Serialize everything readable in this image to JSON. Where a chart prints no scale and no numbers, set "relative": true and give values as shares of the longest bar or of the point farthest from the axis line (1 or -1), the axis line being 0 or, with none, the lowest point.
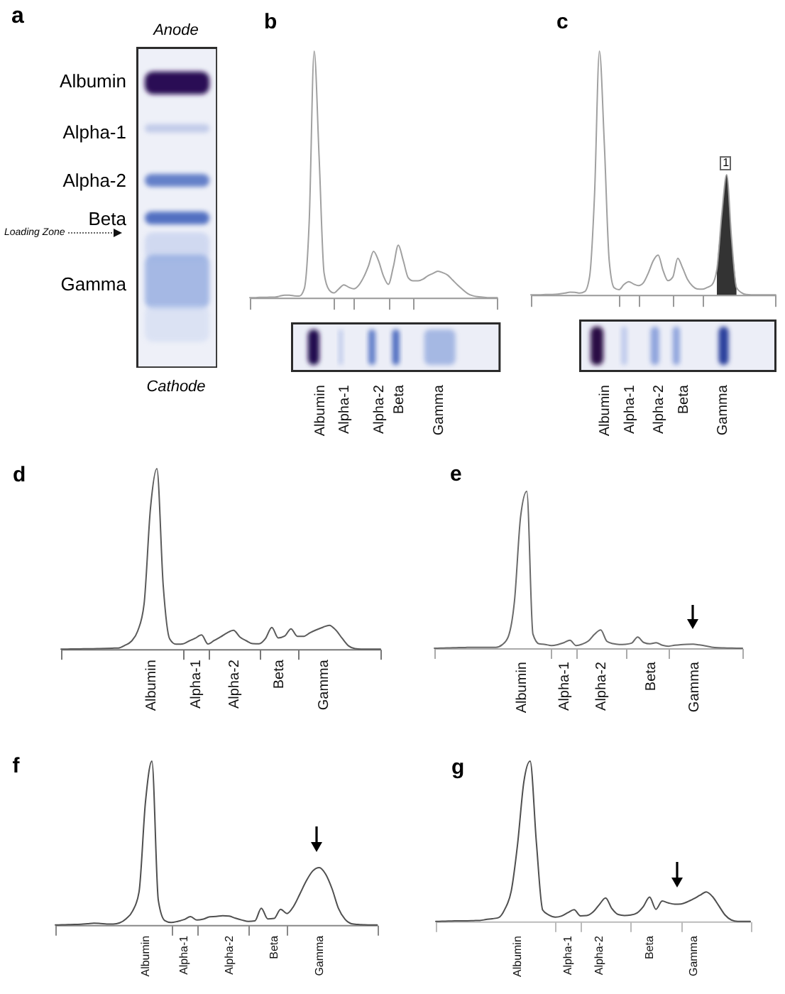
{
  "chart_data": [
    {
      "type": "other",
      "title": "a",
      "annotations": [
        "Anode",
        "Albumin",
        "Alpha-1",
        "Alpha-2",
        "Beta",
        "Loading Zone",
        "Gamma",
        "Cathode"
      ]
    },
    {
      "type": "line",
      "title": "b",
      "relative": true,
      "categories": [
        null,
        null,
        null,
        null,
        null,
        null,
        null,
        null,
        null,
        null,
        null,
        null,
        null,
        null,
        "Albumin",
        null,
        null,
        null,
        null,
        "Alpha-1",
        null,
        null,
        null,
        null,
        null,
        null,
        "Alpha-2",
        null,
        null,
        null,
        "Beta",
        null,
        null,
        null,
        null,
        null,
        null,
        null,
        "Gamma",
        null,
        null,
        null,
        null,
        null,
        null,
        null,
        null,
        null,
        null,
        null,
        null
      ],
      "series": [
        {
          "color": "#a0a0a0",
          "values": [
            0,
            0,
            0.001,
            0.001,
            0.002,
            0.002,
            0.006,
            0.01,
            0.01,
            0.007,
            0.006,
            0.036,
            0.31,
            1,
            0.57,
            0.1,
            0.032,
            0.019,
            0.036,
            0.052,
            0.042,
            0.036,
            0.05,
            0.083,
            0.13,
            0.188,
            0.15,
            0.088,
            0.054,
            0.125,
            0.213,
            0.151,
            0.081,
            0.068,
            0.068,
            0.075,
            0.089,
            0.098,
            0.107,
            0.101,
            0.091,
            0.071,
            0.051,
            0.033,
            0.017,
            0.008,
            0.004,
            0.002,
            0,
            0,
            0
          ]
        }
      ]
    },
    {
      "type": "line",
      "title": "c",
      "relative": true,
      "categories": [
        null,
        null,
        null,
        null,
        null,
        null,
        null,
        null,
        null,
        null,
        null,
        null,
        null,
        null,
        null,
        "Albumin",
        null,
        null,
        null,
        null,
        "Alpha-1",
        null,
        null,
        null,
        null,
        null,
        "Alpha-2",
        null,
        null,
        null,
        null,
        "Beta",
        null,
        null,
        null,
        null,
        null,
        null,
        null,
        "Gamma",
        null,
        null,
        null,
        null,
        null,
        null,
        null,
        null,
        null,
        null,
        null
      ],
      "series": [
        {
          "color": "#a0a0a0",
          "values": [
            0,
            0,
            0,
            0.001,
            0.001,
            0.002,
            0.004,
            0.007,
            0.011,
            0.01,
            0.007,
            0.013,
            0.076,
            0.41,
            1,
            0.62,
            0.14,
            0.029,
            0.021,
            0.042,
            0.054,
            0.044,
            0.038,
            0.05,
            0.09,
            0.14,
            0.163,
            0.1,
            0.058,
            0.073,
            0.15,
            0.11,
            0.063,
            0.036,
            0.024,
            0.023,
            0.03,
            0.041,
            0.105,
            0.33,
            0.493,
            0.23,
            0.03,
            0.009,
            0.001,
            0,
            0,
            0,
            0,
            0,
            0
          ]
        },
        {
          "type": "area",
          "color": "#333333",
          "values": [
            null,
            null,
            null,
            null,
            null,
            null,
            null,
            null,
            null,
            null,
            null,
            null,
            null,
            null,
            null,
            null,
            null,
            null,
            null,
            null,
            null,
            null,
            null,
            null,
            null,
            null,
            null,
            null,
            null,
            null,
            null,
            null,
            null,
            null,
            null,
            null,
            null,
            null,
            0.105,
            0.33,
            0.493,
            0.23,
            0.03,
            null,
            null,
            null,
            null,
            null,
            null,
            null,
            null
          ]
        }
      ],
      "annotations": [
        "1"
      ]
    },
    {
      "type": "line",
      "title": "d",
      "relative": true,
      "categories": [
        null,
        null,
        null,
        null,
        null,
        null,
        null,
        null,
        null,
        null,
        null,
        null,
        null,
        null,
        "Albumin",
        null,
        null,
        null,
        null,
        null,
        null,
        "Alpha-1",
        null,
        null,
        null,
        null,
        null,
        "Alpha-2",
        null,
        null,
        null,
        null,
        null,
        null,
        "Beta",
        null,
        null,
        null,
        null,
        null,
        null,
        "Gamma",
        null,
        null,
        null,
        null,
        null,
        null,
        null,
        null,
        null
      ],
      "series": [
        {
          "color": "#5a5a5a",
          "values": [
            0,
            0,
            0.001,
            0.001,
            0.002,
            0.002,
            0.003,
            0.004,
            0.005,
            0.006,
            0.021,
            0.043,
            0.1,
            0.25,
            0.78,
            1,
            0.35,
            0.057,
            0.027,
            0.028,
            0.044,
            0.06,
            0.078,
            0.028,
            0.048,
            0.068,
            0.09,
            0.104,
            0.067,
            0.046,
            0.03,
            0.029,
            0.058,
            0.12,
            0.062,
            0.072,
            0.112,
            0.071,
            0.071,
            0.091,
            0.107,
            0.121,
            0.132,
            0.106,
            0.06,
            0.018,
            0.003,
            0,
            0,
            0,
            0
          ]
        }
      ]
    },
    {
      "type": "line",
      "title": "e",
      "relative": true,
      "categories": [
        null,
        null,
        null,
        null,
        null,
        null,
        null,
        null,
        null,
        null,
        null,
        null,
        null,
        null,
        "Albumin",
        null,
        null,
        null,
        null,
        null,
        null,
        "Alpha-1",
        null,
        null,
        null,
        null,
        null,
        "Alpha-2",
        null,
        null,
        null,
        null,
        null,
        null,
        null,
        "Beta",
        null,
        null,
        null,
        null,
        null,
        null,
        "Gamma",
        null,
        null,
        null,
        null,
        null,
        null,
        null,
        null
      ],
      "series": [
        {
          "color": "#6a6a6a",
          "values": [
            0,
            0.001,
            0.002,
            0.003,
            0.004,
            0.005,
            0.006,
            0.006,
            0.006,
            0.006,
            0.006,
            0.022,
            0.074,
            0.3,
            0.84,
            1,
            0.09,
            0.028,
            0.024,
            0.017,
            0.023,
            0.035,
            0.051,
            0.017,
            0.026,
            0.046,
            0.089,
            0.116,
            0.044,
            0.029,
            0.024,
            0.025,
            0.032,
            0.071,
            0.036,
            0.028,
            0.035,
            0.019,
            0.013,
            0.019,
            0.023,
            0.025,
            0.026,
            0.021,
            0.015,
            0.007,
            0.003,
            0.002,
            0.001,
            0,
            0
          ]
        }
      ]
    },
    {
      "type": "line",
      "title": "f",
      "relative": true,
      "categories": [
        null,
        null,
        null,
        null,
        null,
        null,
        null,
        null,
        null,
        null,
        null,
        null,
        null,
        null,
        "Albumin",
        null,
        null,
        null,
        null,
        null,
        "Alpha-1",
        null,
        null,
        null,
        null,
        null,
        null,
        "Alpha-2",
        null,
        null,
        null,
        null,
        null,
        null,
        "Beta",
        null,
        null,
        null,
        null,
        null,
        null,
        "Gamma",
        null,
        null,
        null,
        null,
        null,
        null,
        null,
        null,
        null
      ],
      "series": [
        {
          "color": "#4f4f4f",
          "values": [
            0,
            0.001,
            0.002,
            0.003,
            0.005,
            0.008,
            0.011,
            0.009,
            0.006,
            0.006,
            0.013,
            0.038,
            0.085,
            0.201,
            0.75,
            1,
            0.15,
            0.027,
            0.015,
            0.022,
            0.033,
            0.051,
            0.03,
            0.036,
            0.05,
            0.052,
            0.057,
            0.054,
            0.041,
            0.03,
            0.022,
            0.025,
            0.102,
            0.037,
            0.04,
            0.096,
            0.07,
            0.113,
            0.19,
            0.27,
            0.33,
            0.35,
            0.31,
            0.22,
            0.1,
            0.035,
            0.008,
            0.003,
            0.001,
            0,
            0
          ]
        }
      ]
    },
    {
      "type": "line",
      "title": "g",
      "relative": true,
      "categories": [
        null,
        null,
        null,
        null,
        null,
        null,
        null,
        null,
        null,
        null,
        null,
        null,
        null,
        "Albumin",
        null,
        null,
        null,
        null,
        null,
        null,
        null,
        "Alpha-1",
        null,
        null,
        null,
        null,
        "Alpha-2",
        null,
        null,
        null,
        null,
        null,
        null,
        null,
        "Beta",
        null,
        null,
        null,
        null,
        null,
        null,
        "Gamma",
        null,
        null,
        null,
        null,
        null,
        null,
        null,
        null,
        null
      ],
      "series": [
        {
          "color": "#4f4f4f",
          "values": [
            0,
            0.001,
            0.002,
            0.003,
            0.004,
            0.004,
            0.005,
            0.006,
            0.012,
            0.017,
            0.024,
            0.078,
            0.19,
            0.48,
            0.87,
            1,
            0.49,
            0.071,
            0.04,
            0.027,
            0.034,
            0.055,
            0.073,
            0.035,
            0.037,
            0.059,
            0.105,
            0.146,
            0.08,
            0.043,
            0.037,
            0.04,
            0.053,
            0.093,
            0.152,
            0.076,
            0.127,
            0.115,
            0.108,
            0.109,
            0.122,
            0.141,
            0.163,
            0.184,
            0.155,
            0.098,
            0.04,
            0.009,
            0,
            0,
            0
          ]
        }
      ]
    }
  ]
}
